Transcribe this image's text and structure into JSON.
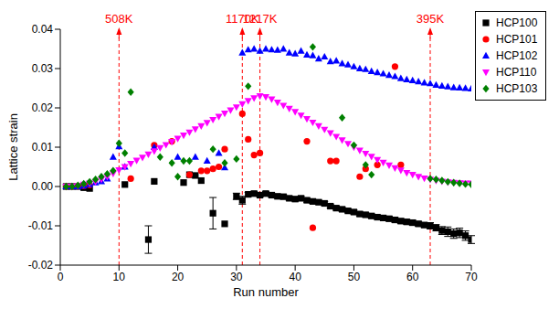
{
  "chart_data": {
    "type": "scatter",
    "x_label": "Run number",
    "y_label": "Lattice strain",
    "xlim": [
      0,
      70
    ],
    "xticks": [
      0,
      10,
      20,
      30,
      40,
      50,
      60,
      70
    ],
    "ylim": [
      -0.02,
      0.04
    ],
    "yticks": [
      {
        "value": -0.02,
        "label": "-0.02"
      },
      {
        "value": -0.01,
        "label": "-0.01"
      },
      {
        "value": 0,
        "label": "0.00"
      },
      {
        "value": 0.01,
        "label": "0.01"
      },
      {
        "value": 0.02,
        "label": "0.02"
      },
      {
        "value": 0.03,
        "label": "0.03"
      },
      {
        "value": 0.04,
        "label": "0.04"
      }
    ],
    "grid": false,
    "legend": "upper right",
    "annotations": [
      {
        "x": 10,
        "label": "508K",
        "color": "#ff0000",
        "line_style": "dashed"
      },
      {
        "x": 31,
        "label": "1170K",
        "color": "#ff0000",
        "line_style": "dashed"
      },
      {
        "x": 34,
        "label": "1217K",
        "color": "#ff0000",
        "line_style": "dashed"
      },
      {
        "x": 63,
        "label": "395K",
        "color": "#ff0000",
        "line_style": "dashed"
      }
    ],
    "series": [
      {
        "name": "HCP100",
        "color": "#000000",
        "marker": "square",
        "x": [
          1,
          2,
          3,
          4,
          5,
          11,
          15,
          16,
          21,
          22,
          23,
          24,
          26,
          28,
          30,
          31,
          32,
          33,
          34,
          35,
          36,
          37,
          38,
          39,
          40,
          41,
          42,
          43,
          44,
          45,
          46,
          47,
          48,
          49,
          50,
          51,
          52,
          53,
          54,
          55,
          56,
          57,
          58,
          59,
          60,
          61,
          62,
          63,
          64,
          65,
          66,
          67,
          68,
          69,
          70
        ],
        "values": [
          0,
          0,
          0,
          -0.0003,
          -0.0005,
          0.0005,
          -0.0135,
          0.0013,
          0.001,
          0.003,
          0.0028,
          0.0015,
          -0.0068,
          -0.0095,
          -0.0025,
          -0.0035,
          -0.002,
          -0.0018,
          -0.0022,
          -0.0018,
          -0.0022,
          -0.0025,
          -0.0026,
          -0.003,
          -0.0032,
          -0.003,
          -0.0035,
          -0.0038,
          -0.004,
          -0.0043,
          -0.005,
          -0.0055,
          -0.0058,
          -0.0062,
          -0.0065,
          -0.007,
          -0.0072,
          -0.0075,
          -0.0078,
          -0.008,
          -0.0082,
          -0.0085,
          -0.0088,
          -0.009,
          -0.0092,
          -0.0095,
          -0.0098,
          -0.01,
          -0.0105,
          -0.0112,
          -0.0115,
          -0.012,
          -0.0118,
          -0.0125,
          -0.0135
        ],
        "errors": [
          null,
          null,
          null,
          null,
          null,
          null,
          0.0035,
          null,
          null,
          null,
          null,
          null,
          0.004,
          null,
          0.0008,
          0.001,
          0.0005,
          0.0005,
          0.0005,
          0.0005,
          0.0005,
          0.0005,
          0.0005,
          0.0005,
          0.0005,
          0.0005,
          0.0005,
          0.0005,
          0.0005,
          0.0005,
          0.0005,
          0.0005,
          0.0005,
          0.0005,
          0.0005,
          0.0005,
          0.0005,
          0.0005,
          0.0005,
          0.0005,
          0.0006,
          0.0006,
          0.0006,
          0.0006,
          0.0006,
          0.0006,
          0.0006,
          0.0008,
          0.0008,
          0.001,
          0.0012,
          0.0012,
          0.0012,
          0.0012,
          0.001
        ]
      },
      {
        "name": "HCP101",
        "color": "#ff0000",
        "marker": "circle",
        "x": [
          1,
          2,
          3,
          4,
          5,
          12,
          16,
          19,
          22,
          24,
          25,
          26,
          27,
          28,
          31,
          32,
          33,
          34,
          42,
          43,
          46,
          47,
          51,
          52,
          54,
          57,
          58
        ],
        "values": [
          0,
          0,
          0.0001,
          0.0002,
          0.0004,
          0.002,
          0.0105,
          0.0115,
          0.003,
          0.004,
          0.004,
          0.0045,
          0.005,
          0.0095,
          0.0185,
          0.012,
          0.008,
          0.0085,
          0.0115,
          -0.0105,
          0.0065,
          0.0065,
          0.0025,
          0.0045,
          0.0055,
          0.0305,
          0.0055
        ]
      },
      {
        "name": "HCP102",
        "color": "#0000ff",
        "marker": "triangle-up",
        "x": [
          1,
          2,
          3,
          4,
          5,
          6,
          7,
          8,
          9,
          10,
          11,
          16,
          20,
          23,
          25,
          27,
          28,
          31,
          32,
          33,
          34,
          35,
          36,
          37,
          38,
          39,
          40,
          41,
          42,
          43,
          44,
          45,
          46,
          47,
          48,
          49,
          50,
          51,
          52,
          53,
          54,
          55,
          56,
          57,
          58,
          59,
          60,
          61,
          62,
          63,
          64,
          65,
          66,
          67,
          68,
          69,
          70
        ],
        "values": [
          0,
          0,
          0,
          0.0002,
          0.0005,
          0.001,
          0.0013,
          0.002,
          0.0075,
          0.0102,
          0.005,
          0.01,
          0.0075,
          0.0075,
          0.0065,
          0.0085,
          0.0048,
          0.034,
          0.0348,
          0.035,
          0.0345,
          0.035,
          0.0348,
          0.0347,
          0.035,
          0.034,
          0.0338,
          0.0345,
          0.0335,
          0.0333,
          0.0325,
          0.033,
          0.0318,
          0.032,
          0.0313,
          0.031,
          0.0305,
          0.03,
          0.0298,
          0.0293,
          0.029,
          0.0287,
          0.0283,
          0.028,
          0.0275,
          0.0272,
          0.027,
          0.0267,
          0.0264,
          0.0262,
          0.0258,
          0.0256,
          0.0254,
          0.0252,
          0.0251,
          0.025,
          0.0249
        ]
      },
      {
        "name": "HCP110",
        "color": "#ff00ff",
        "marker": "triangle-down",
        "x": [
          1,
          2,
          3,
          4,
          5,
          6,
          7,
          8,
          9,
          10,
          11,
          12,
          13,
          14,
          15,
          16,
          17,
          18,
          19,
          20,
          21,
          22,
          23,
          24,
          25,
          26,
          27,
          28,
          29,
          30,
          31,
          32,
          33,
          34,
          35,
          36,
          37,
          38,
          39,
          40,
          41,
          42,
          43,
          44,
          45,
          46,
          47,
          48,
          49,
          50,
          51,
          52,
          53,
          54,
          55,
          56,
          57,
          58,
          59,
          60,
          61,
          62,
          63,
          64,
          65,
          66,
          67,
          68,
          69,
          70
        ],
        "values": [
          0,
          0,
          0.0002,
          0.0005,
          0.0008,
          0.0012,
          0.0018,
          0.0025,
          0.0033,
          0.0042,
          0.005,
          0.0058,
          0.0066,
          0.0074,
          0.0082,
          0.009,
          0.0098,
          0.0106,
          0.0114,
          0.0122,
          0.013,
          0.0138,
          0.0146,
          0.0154,
          0.0162,
          0.017,
          0.0178,
          0.0186,
          0.0194,
          0.0202,
          0.021,
          0.0218,
          0.0225,
          0.023,
          0.0228,
          0.0222,
          0.0214,
          0.0206,
          0.0198,
          0.019,
          0.0181,
          0.0172,
          0.0163,
          0.0154,
          0.0145,
          0.0136,
          0.0127,
          0.0118,
          0.0109,
          0.01,
          0.0092,
          0.0084,
          0.0076,
          0.0068,
          0.0061,
          0.0054,
          0.0047,
          0.0041,
          0.0035,
          0.003,
          0.0025,
          0.0021,
          0.0018,
          0.0015,
          0.0013,
          0.0011,
          0.001,
          0.0009,
          0.0008,
          0.0008
        ]
      },
      {
        "name": "HCP103",
        "color": "#008000",
        "marker": "diamond",
        "x": [
          1,
          2,
          3,
          4,
          5,
          6,
          7,
          8,
          9,
          10,
          11,
          12,
          17,
          19,
          20,
          21,
          22,
          26,
          28,
          30,
          32,
          43,
          48,
          50,
          52,
          53,
          63,
          64,
          65,
          66,
          67,
          68,
          69,
          70
        ],
        "values": [
          0,
          0,
          0.0003,
          0.0007,
          0.0012,
          0.0018,
          0.0025,
          0.0032,
          0.004,
          0.011,
          0.0085,
          0.024,
          0.0075,
          0.006,
          0.0025,
          0.0065,
          0.0065,
          0.0095,
          0.006,
          0.007,
          0.0255,
          0.0355,
          0.0175,
          0.0105,
          0.0055,
          0.003,
          0.002,
          0.0018,
          0.0015,
          0.0012,
          0.001,
          0.0008,
          0.0006,
          0.0005
        ]
      }
    ]
  }
}
